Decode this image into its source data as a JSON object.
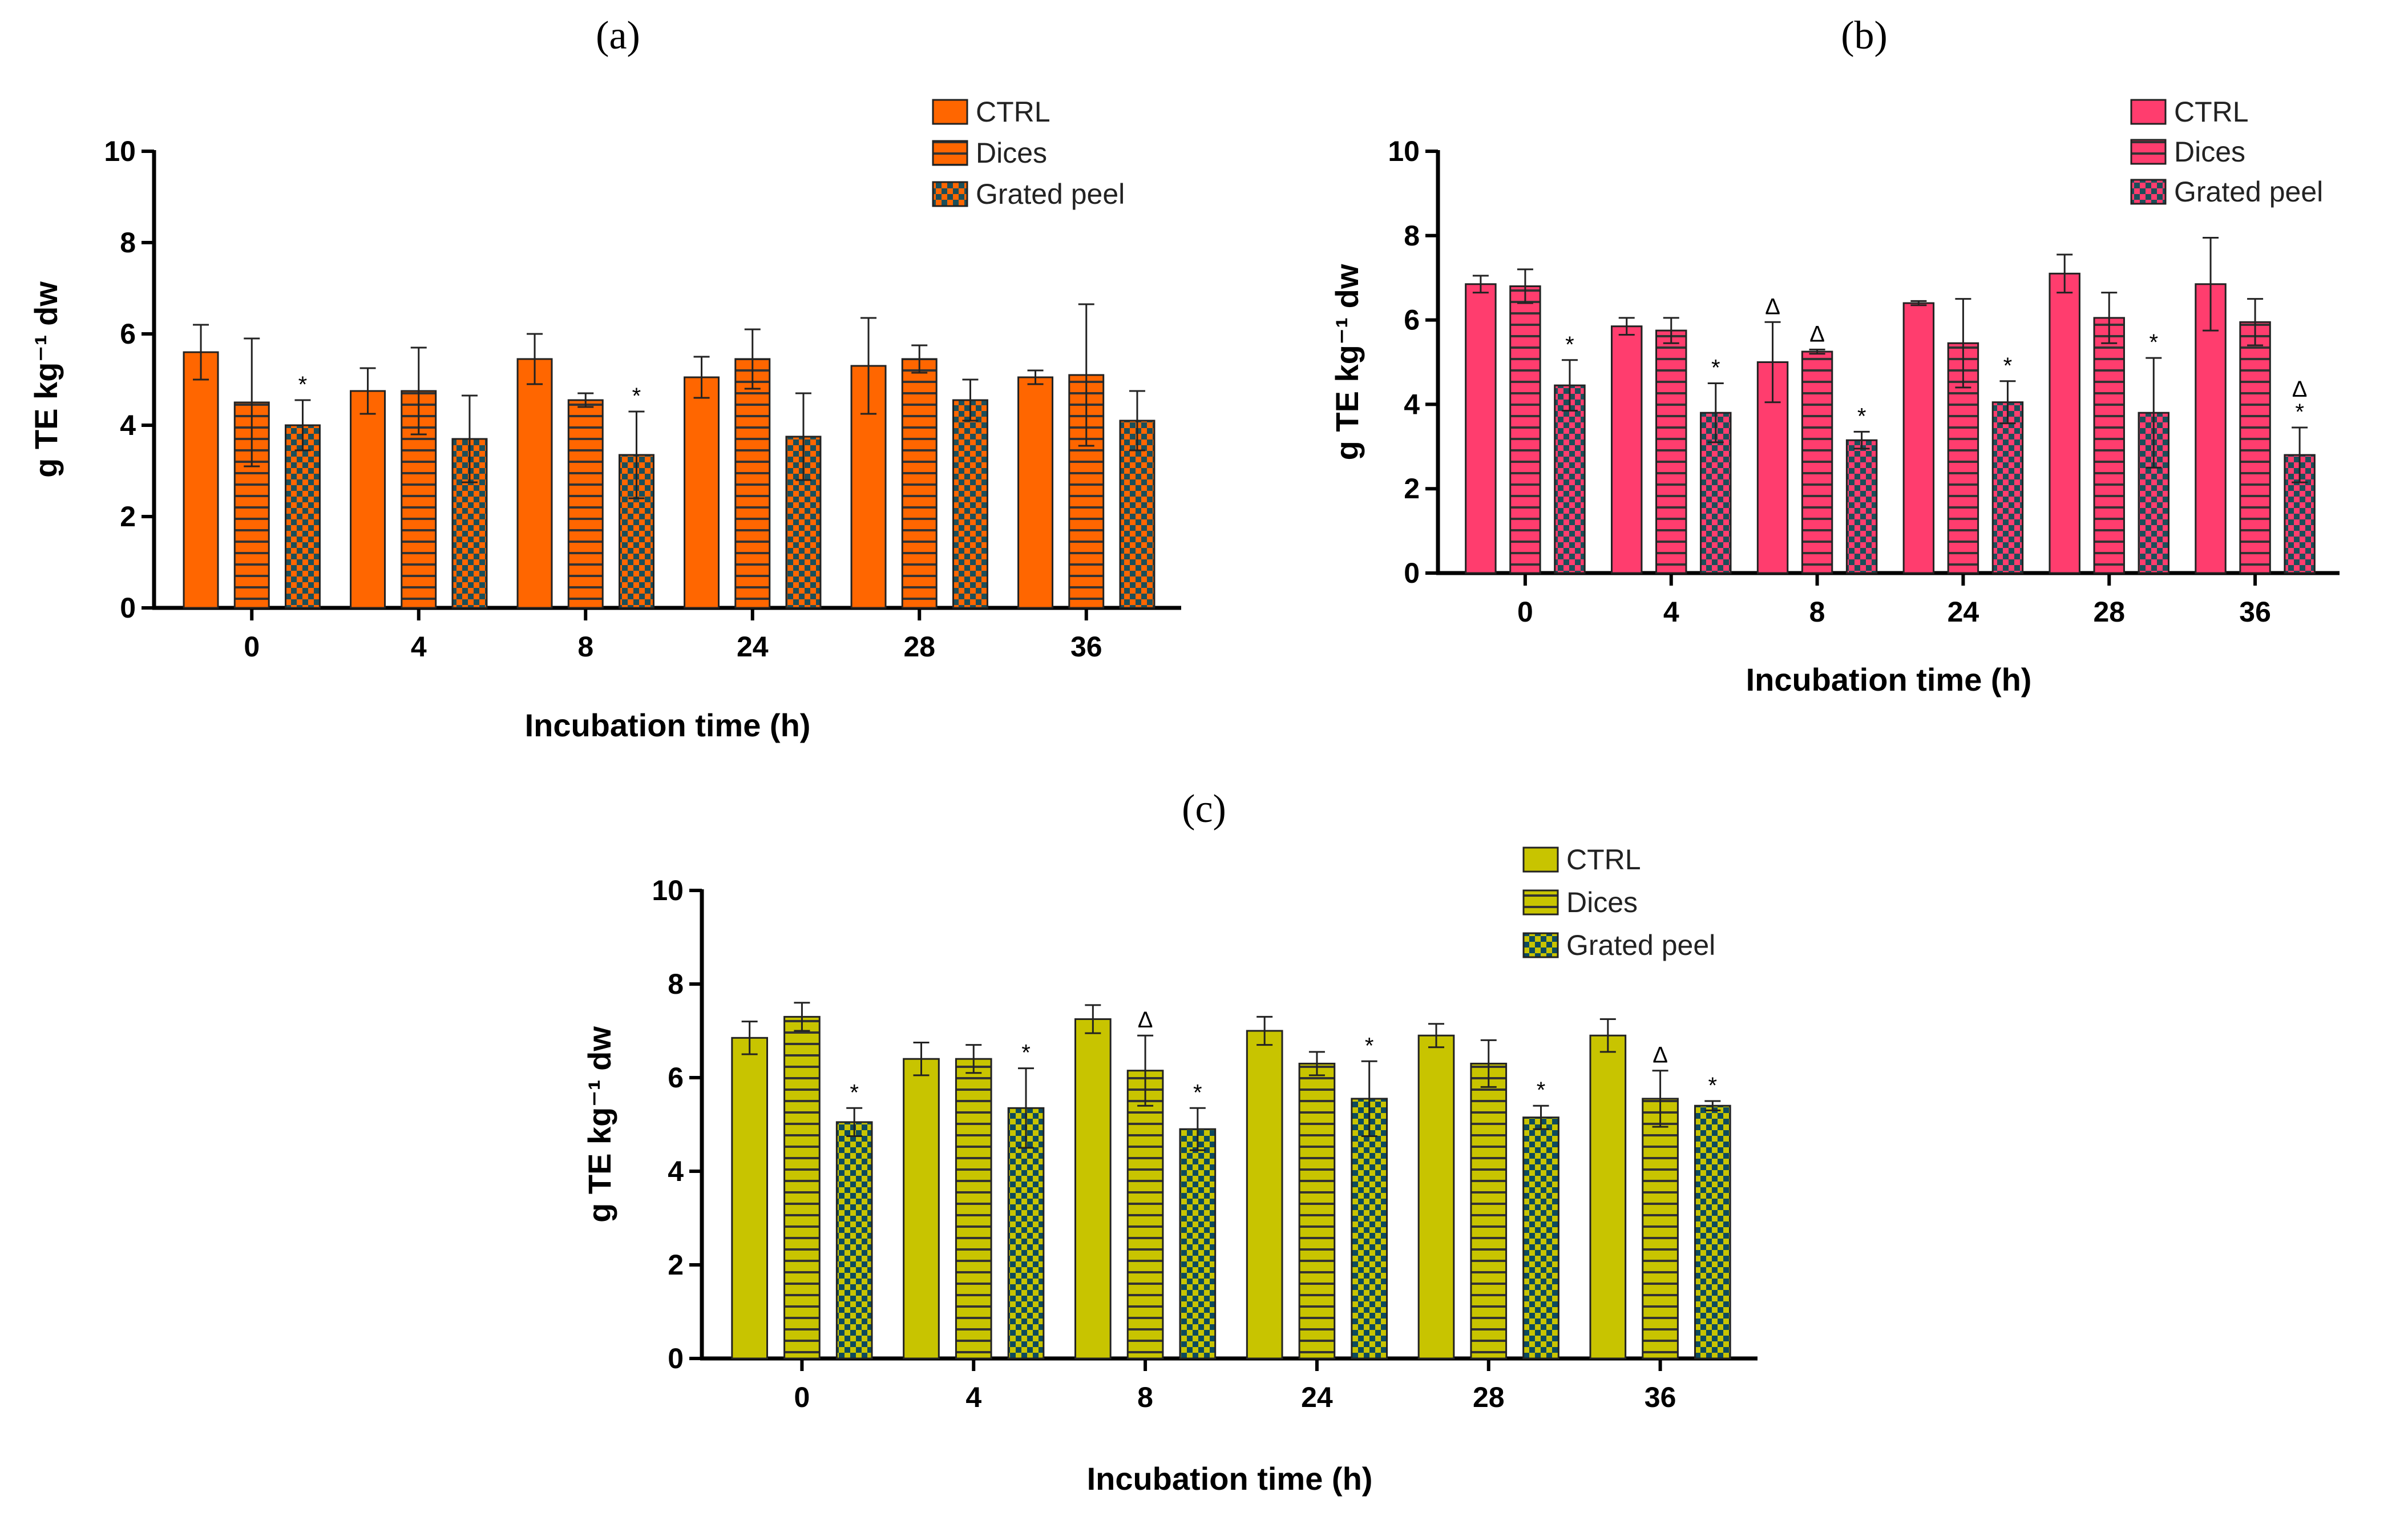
{
  "figure": {
    "panels": [
      {
        "label": "(a)",
        "colors": {
          "bar": "#ff6600",
          "dark": "#1b4f5a",
          "axis": "#000000"
        }
      },
      {
        "label": "(b)",
        "colors": {
          "bar": "#ff3d6e",
          "dark": "#1b4f5a",
          "axis": "#000000"
        }
      },
      {
        "label": "(c)",
        "colors": {
          "bar": "#c8c400",
          "dark": "#0d4a5e",
          "axis": "#000000"
        }
      }
    ]
  },
  "chart_data": [
    {
      "type": "bar",
      "title": "(a)",
      "xlabel": "Incubation time (h)",
      "ylabel": "g TE kg⁻¹ dw",
      "ylim": [
        0,
        10
      ],
      "yticks": [
        "0",
        "2",
        "4",
        "6",
        "8",
        "10"
      ],
      "categories": [
        "0",
        "4",
        "8",
        "24",
        "28",
        "36"
      ],
      "legend_position": "top-right",
      "series": [
        {
          "name": "CTRL",
          "pattern": "solid",
          "values": [
            5.6,
            4.75,
            5.45,
            5.05,
            5.3,
            5.05
          ],
          "errors": [
            0.6,
            0.5,
            0.55,
            0.45,
            1.05,
            0.15
          ],
          "annotations": [
            "",
            "",
            "",
            "",
            "",
            ""
          ]
        },
        {
          "name": "Dices",
          "pattern": "stripes",
          "values": [
            4.5,
            4.75,
            4.55,
            5.45,
            5.45,
            5.1
          ],
          "errors": [
            1.4,
            0.95,
            0.15,
            0.65,
            0.3,
            1.55
          ],
          "annotations": [
            "",
            "",
            "",
            "",
            "",
            ""
          ]
        },
        {
          "name": "Grated peel",
          "pattern": "checker",
          "values": [
            4.0,
            3.7,
            3.35,
            3.75,
            4.55,
            4.1
          ],
          "errors": [
            0.55,
            0.95,
            0.95,
            0.95,
            0.45,
            0.65
          ],
          "annotations": [
            "*",
            "",
            "*",
            "",
            "",
            ""
          ]
        }
      ]
    },
    {
      "type": "bar",
      "title": "(b)",
      "xlabel": "Incubation time (h)",
      "ylabel": "g TE kg⁻¹ dw",
      "ylim": [
        0,
        10
      ],
      "yticks": [
        "0",
        "2",
        "4",
        "6",
        "8",
        "10"
      ],
      "categories": [
        "0",
        "4",
        "8",
        "24",
        "28",
        "36"
      ],
      "legend_position": "top-right",
      "series": [
        {
          "name": "CTRL",
          "pattern": "solid",
          "values": [
            6.85,
            5.85,
            5.0,
            6.4,
            7.1,
            6.85
          ],
          "errors": [
            0.2,
            0.2,
            0.95,
            0.05,
            0.45,
            1.1
          ],
          "annotations": [
            "",
            "",
            "Δ",
            "",
            "",
            ""
          ]
        },
        {
          "name": "Dices",
          "pattern": "stripes",
          "values": [
            6.8,
            5.75,
            5.25,
            5.45,
            6.05,
            5.95
          ],
          "errors": [
            0.4,
            0.3,
            0.05,
            1.05,
            0.6,
            0.55
          ],
          "annotations": [
            "",
            "",
            "Δ",
            "",
            "",
            ""
          ]
        },
        {
          "name": "Grated peel",
          "pattern": "checker",
          "values": [
            4.45,
            3.8,
            3.15,
            4.05,
            3.8,
            2.8
          ],
          "errors": [
            0.6,
            0.7,
            0.2,
            0.5,
            1.3,
            0.65
          ],
          "annotations": [
            "*",
            "*",
            "*",
            "*",
            "*",
            "Δ*"
          ]
        }
      ]
    },
    {
      "type": "bar",
      "title": "(c)",
      "xlabel": "Incubation time (h)",
      "ylabel": "g TE kg⁻¹ dw",
      "ylim": [
        0,
        10
      ],
      "yticks": [
        "0",
        "2",
        "4",
        "6",
        "8",
        "10"
      ],
      "categories": [
        "0",
        "4",
        "8",
        "24",
        "28",
        "36"
      ],
      "legend_position": "top-right",
      "series": [
        {
          "name": "CTRL",
          "pattern": "solid",
          "values": [
            6.85,
            6.4,
            7.25,
            7.0,
            6.9,
            6.9
          ],
          "errors": [
            0.35,
            0.35,
            0.3,
            0.3,
            0.25,
            0.35
          ],
          "annotations": [
            "",
            "",
            "",
            "",
            "",
            ""
          ]
        },
        {
          "name": "Dices",
          "pattern": "stripes",
          "values": [
            7.3,
            6.4,
            6.15,
            6.3,
            6.3,
            5.55
          ],
          "errors": [
            0.3,
            0.3,
            0.75,
            0.25,
            0.5,
            0.6
          ],
          "annotations": [
            "",
            "",
            "Δ",
            "",
            "",
            "Δ"
          ]
        },
        {
          "name": "Grated peel",
          "pattern": "checker",
          "values": [
            5.05,
            5.35,
            4.9,
            5.55,
            5.15,
            5.4
          ],
          "errors": [
            0.3,
            0.85,
            0.45,
            0.8,
            0.25,
            0.1
          ],
          "annotations": [
            "*",
            "*",
            "*",
            "*",
            "*",
            "*"
          ]
        }
      ]
    }
  ]
}
